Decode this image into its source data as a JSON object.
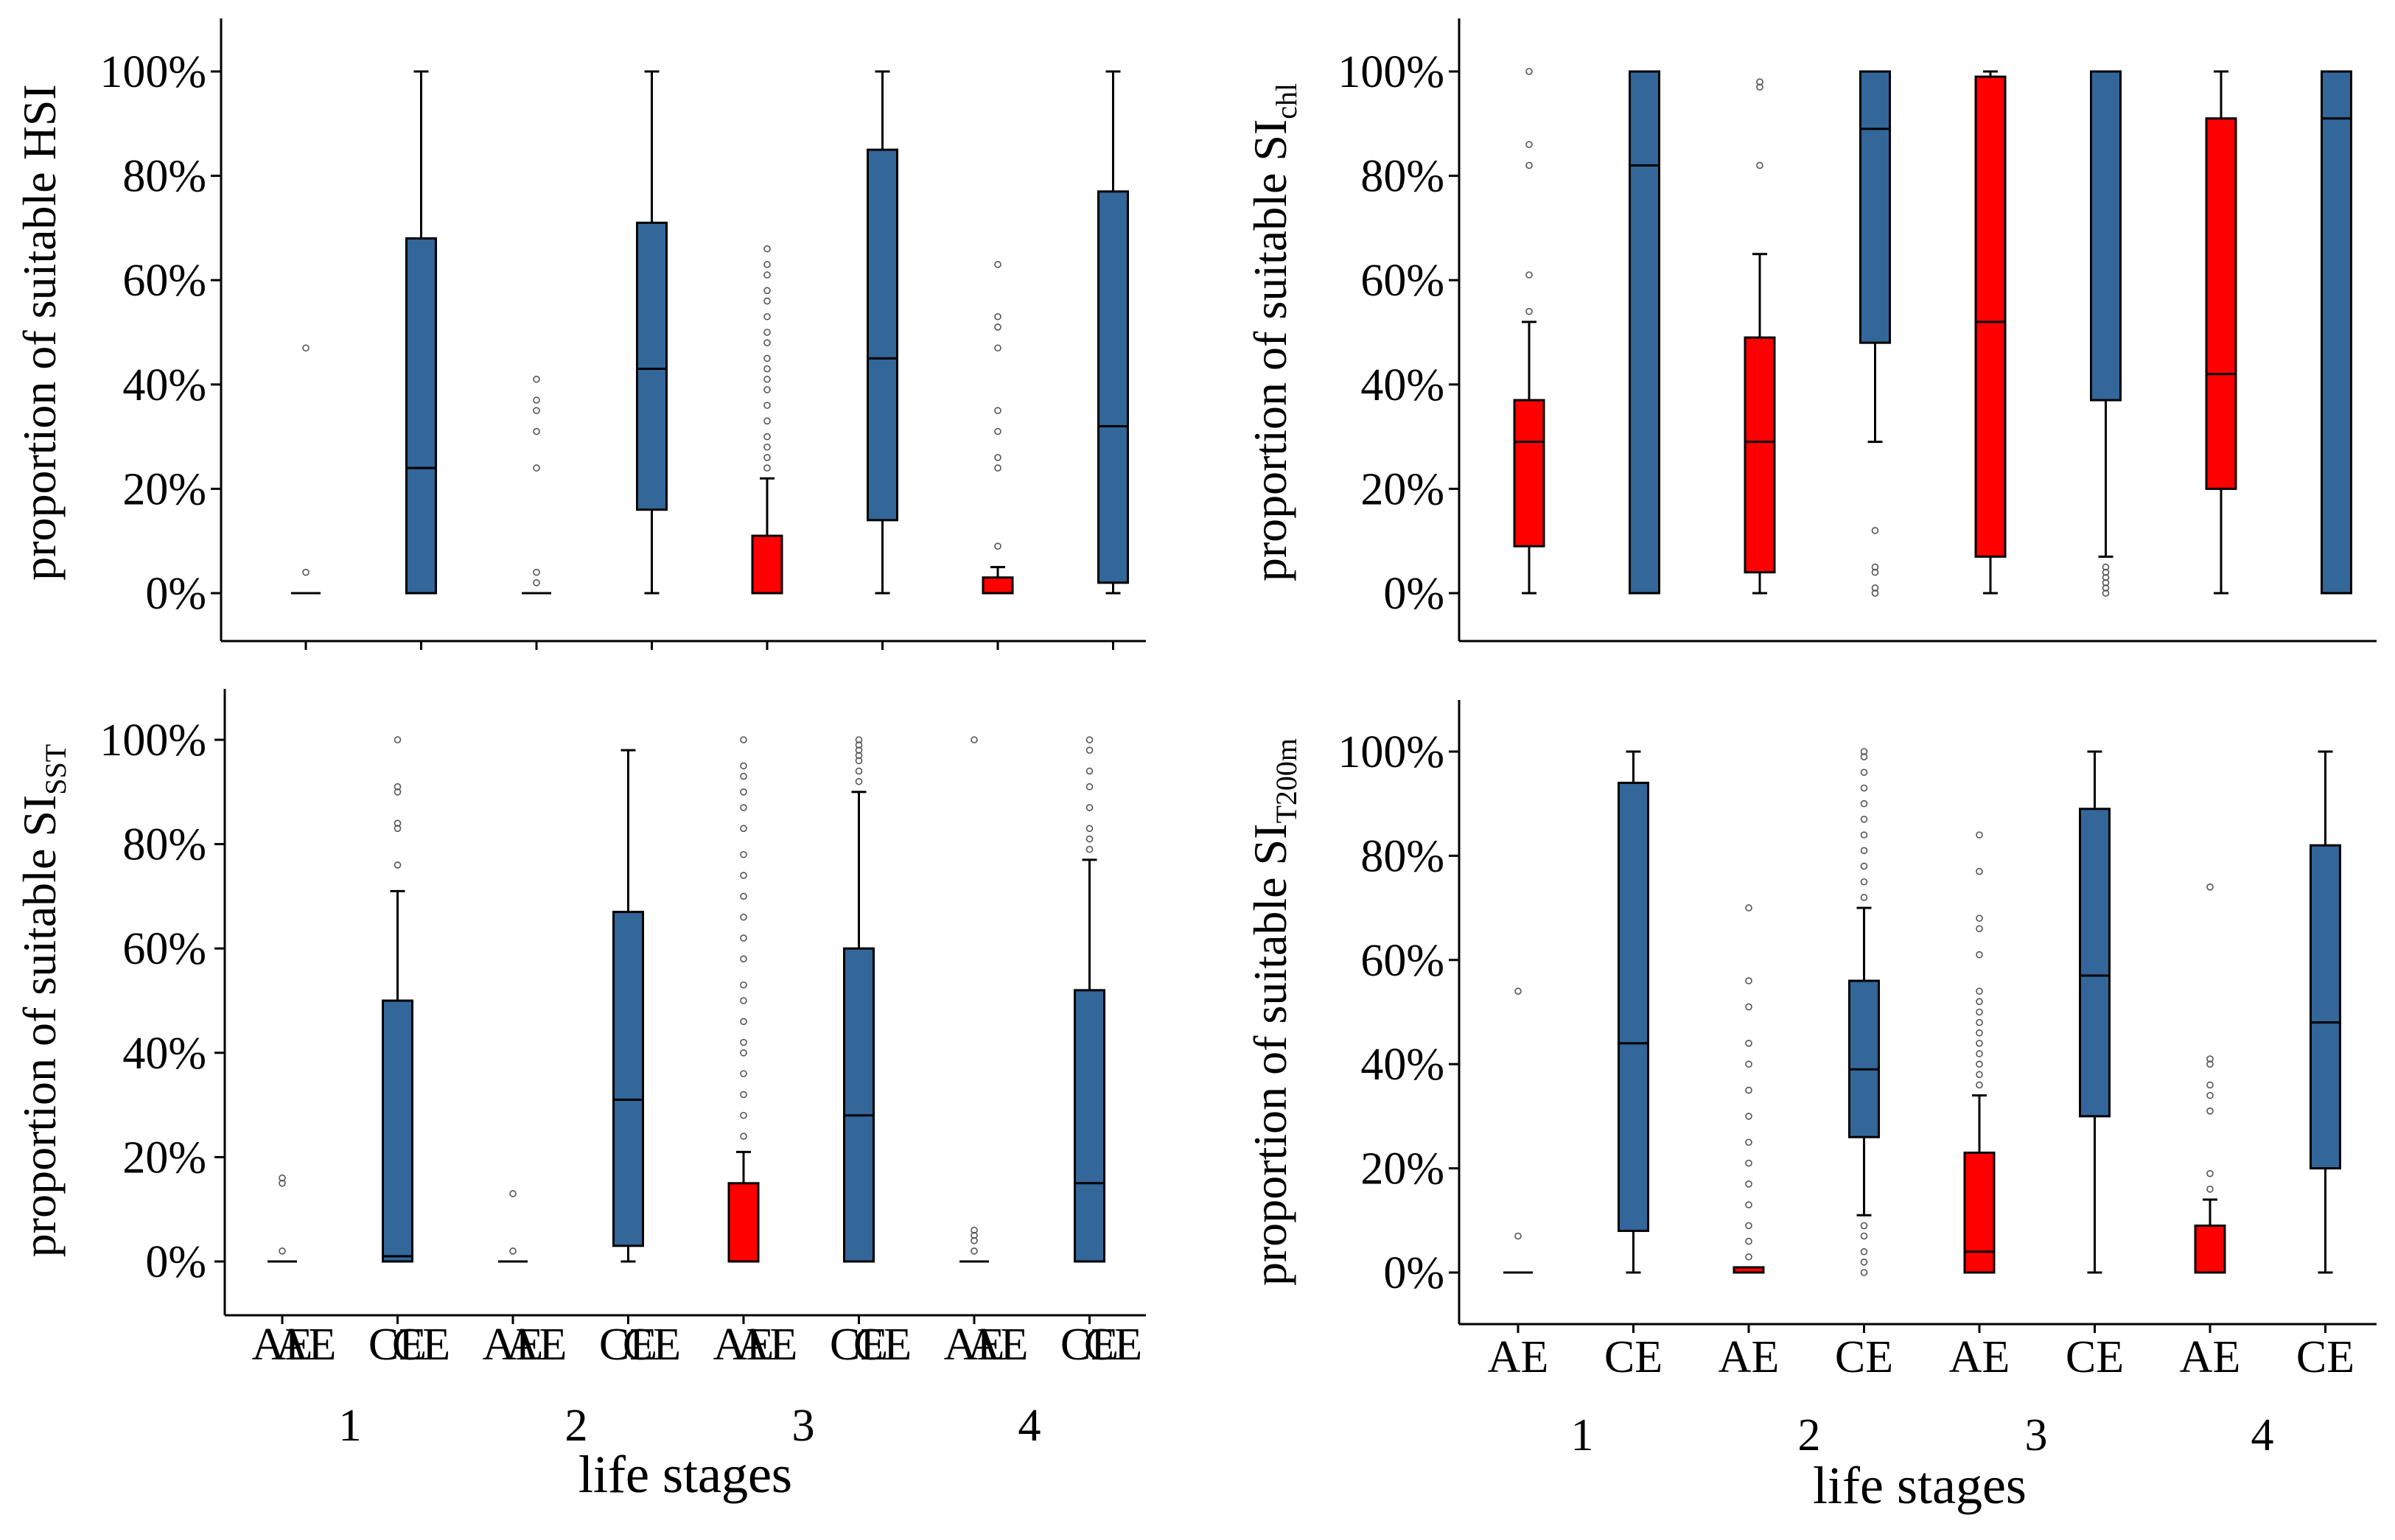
{
  "colors": {
    "AE": "#ff0000",
    "CE": "#336699",
    "axis": "#000000",
    "outlier": "#555555"
  },
  "chart_data": [
    {
      "type": "box",
      "ylabel": "proportion of suitable HSI",
      "ylabel_sub": "",
      "xlabel": "life stages",
      "ylim": [
        -10,
        110
      ],
      "yticks": [
        0,
        20,
        40,
        60,
        80,
        100
      ],
      "tick_labels": [
        "0%",
        "20%",
        "40%",
        "60%",
        "80%",
        "100%"
      ],
      "stages": [
        "1",
        "2",
        "3",
        "4"
      ],
      "categories": [
        "AE",
        "CE",
        "AE",
        "CE",
        "AE",
        "CE",
        "AE",
        "CE"
      ],
      "boxes": [
        {
          "q1": 0,
          "median": 0,
          "q3": 0,
          "whisker_low": 0,
          "whisker_high": 0,
          "outliers": [
            4,
            47
          ]
        },
        {
          "q1": 0,
          "median": 24,
          "q3": 68,
          "whisker_low": 0,
          "whisker_high": 100,
          "outliers": []
        },
        {
          "q1": 0,
          "median": 0,
          "q3": 0,
          "whisker_low": 0,
          "whisker_high": 0,
          "outliers": [
            2,
            4,
            24,
            31,
            35,
            37,
            41
          ]
        },
        {
          "q1": 16,
          "median": 43,
          "q3": 71,
          "whisker_low": 0,
          "whisker_high": 100,
          "outliers": []
        },
        {
          "q1": 0,
          "median": 0,
          "q3": 11,
          "whisker_low": 0,
          "whisker_high": 22,
          "outliers": [
            24,
            26,
            28,
            30,
            33,
            36,
            39,
            41,
            43,
            45,
            48,
            50,
            53,
            56,
            58,
            61,
            63,
            66
          ]
        },
        {
          "q1": 14,
          "median": 45,
          "q3": 85,
          "whisker_low": 0,
          "whisker_high": 100,
          "outliers": []
        },
        {
          "q1": 0,
          "median": 0,
          "q3": 3,
          "whisker_low": 0,
          "whisker_high": 5,
          "outliers": [
            9,
            24,
            26,
            31,
            35,
            47,
            51,
            53,
            63
          ]
        },
        {
          "q1": 2,
          "median": 32,
          "q3": 77,
          "whisker_low": 0,
          "whisker_high": 100,
          "outliers": []
        }
      ]
    },
    {
      "type": "box",
      "ylabel": "proportion of suitable SI",
      "ylabel_sub": "chl",
      "xlabel": "",
      "ylim": [
        -10,
        110
      ],
      "yticks": [
        0,
        20,
        40,
        60,
        80,
        100
      ],
      "tick_labels": [
        "0%",
        "20%",
        "40%",
        "60%",
        "80%",
        "100%"
      ],
      "stages": [],
      "categories": [],
      "boxes": [
        {
          "q1": 9,
          "median": 29,
          "q3": 37,
          "whisker_low": 0,
          "whisker_high": 52,
          "outliers": [
            54,
            61,
            82,
            86,
            100
          ]
        },
        {
          "q1": 0,
          "median": 82,
          "q3": 100,
          "whisker_low": 0,
          "whisker_high": 100,
          "outliers": []
        },
        {
          "q1": 4,
          "median": 29,
          "q3": 49,
          "whisker_low": 0,
          "whisker_high": 65,
          "outliers": [
            82,
            97,
            98
          ]
        },
        {
          "q1": 48,
          "median": 89,
          "q3": 100,
          "whisker_low": 29,
          "whisker_high": 100,
          "outliers": [
            0,
            1,
            4,
            5,
            12
          ]
        },
        {
          "q1": 7,
          "median": 52,
          "q3": 99,
          "whisker_low": 0,
          "whisker_high": 100,
          "outliers": []
        },
        {
          "q1": 37,
          "median": 100,
          "q3": 100,
          "whisker_low": 7,
          "whisker_high": 100,
          "outliers": [
            0,
            1,
            2,
            3,
            4,
            5
          ]
        },
        {
          "q1": 20,
          "median": 42,
          "q3": 91,
          "whisker_low": 0,
          "whisker_high": 100,
          "outliers": []
        },
        {
          "q1": 0,
          "median": 91,
          "q3": 100,
          "whisker_low": 0,
          "whisker_high": 100,
          "outliers": []
        }
      ]
    },
    {
      "type": "box",
      "ylabel": "proportion of suitable SI",
      "ylabel_sub": "SST",
      "xlabel": "life stages",
      "ylim": [
        -10,
        110
      ],
      "yticks": [
        0,
        20,
        40,
        60,
        80,
        100
      ],
      "tick_labels": [
        "0%",
        "20%",
        "40%",
        "60%",
        "80%",
        "100%"
      ],
      "stages": [
        "1",
        "2",
        "3",
        "4"
      ],
      "categories": [
        "AE",
        "CE",
        "AE",
        "CE",
        "AE",
        "CE",
        "AE",
        "CE"
      ],
      "boxes": [
        {
          "q1": 0,
          "median": 0,
          "q3": 0,
          "whisker_low": 0,
          "whisker_high": 0,
          "outliers": [
            2,
            15,
            16
          ]
        },
        {
          "q1": 0,
          "median": 1,
          "q3": 50,
          "whisker_low": 0,
          "whisker_high": 71,
          "outliers": [
            76,
            83,
            84,
            90,
            91,
            100
          ]
        },
        {
          "q1": 0,
          "median": 0,
          "q3": 0,
          "whisker_low": 0,
          "whisker_high": 0,
          "outliers": [
            2,
            13
          ]
        },
        {
          "q1": 3,
          "median": 31,
          "q3": 67,
          "whisker_low": 0,
          "whisker_high": 98,
          "outliers": []
        },
        {
          "q1": 0,
          "median": 0,
          "q3": 15,
          "whisker_low": 0,
          "whisker_high": 21,
          "outliers": [
            24,
            28,
            32,
            36,
            40,
            42,
            46,
            50,
            53,
            58,
            62,
            66,
            70,
            74,
            78,
            83,
            87,
            90,
            93,
            95,
            100
          ]
        },
        {
          "q1": 0,
          "median": 28,
          "q3": 60,
          "whisker_low": 0,
          "whisker_high": 90,
          "outliers": [
            92,
            94,
            96,
            97,
            98,
            99,
            100
          ]
        },
        {
          "q1": 0,
          "median": 0,
          "q3": 0,
          "whisker_low": 0,
          "whisker_high": 0,
          "outliers": [
            2,
            4,
            5,
            6,
            100
          ]
        },
        {
          "q1": 0,
          "median": 15,
          "q3": 52,
          "whisker_low": 0,
          "whisker_high": 77,
          "outliers": [
            79,
            81,
            83,
            87,
            91,
            94,
            98,
            100
          ]
        }
      ]
    },
    {
      "type": "box",
      "ylabel": "proportion of suitable SI",
      "ylabel_sub": "T200m",
      "xlabel": "life stages",
      "ylim": [
        -10,
        110
      ],
      "yticks": [
        0,
        20,
        40,
        60,
        80,
        100
      ],
      "tick_labels": [
        "0%",
        "20%",
        "40%",
        "60%",
        "80%",
        "100%"
      ],
      "stages": [
        "1",
        "2",
        "3",
        "4"
      ],
      "categories": [
        "AE",
        "CE",
        "AE",
        "CE",
        "AE",
        "CE",
        "AE",
        "CE"
      ],
      "boxes": [
        {
          "q1": 0,
          "median": 0,
          "q3": 0,
          "whisker_low": 0,
          "whisker_high": 0,
          "outliers": [
            7,
            54
          ]
        },
        {
          "q1": 8,
          "median": 44,
          "q3": 94,
          "whisker_low": 0,
          "whisker_high": 100,
          "outliers": []
        },
        {
          "q1": 0,
          "median": 0,
          "q3": 1,
          "whisker_low": 0,
          "whisker_high": 1,
          "outliers": [
            3,
            6,
            9,
            13,
            17,
            21,
            25,
            30,
            35,
            40,
            44,
            51,
            56,
            70
          ]
        },
        {
          "q1": 26,
          "median": 39,
          "q3": 56,
          "whisker_low": 11,
          "whisker_high": 70,
          "outliers": [
            0,
            2,
            4,
            7,
            9,
            72,
            75,
            78,
            81,
            84,
            87,
            90,
            93,
            96,
            99,
            100
          ]
        },
        {
          "q1": 0,
          "median": 4,
          "q3": 23,
          "whisker_low": 0,
          "whisker_high": 34,
          "outliers": [
            36,
            38,
            40,
            42,
            44,
            46,
            48,
            50,
            52,
            54,
            61,
            66,
            68,
            77,
            84
          ]
        },
        {
          "q1": 30,
          "median": 57,
          "q3": 89,
          "whisker_low": 0,
          "whisker_high": 100,
          "outliers": []
        },
        {
          "q1": 0,
          "median": 0,
          "q3": 9,
          "whisker_low": 0,
          "whisker_high": 14,
          "outliers": [
            16,
            19,
            31,
            34,
            36,
            40,
            41,
            74
          ]
        },
        {
          "q1": 20,
          "median": 48,
          "q3": 82,
          "whisker_low": 0,
          "whisker_high": 100,
          "outliers": []
        }
      ]
    }
  ]
}
